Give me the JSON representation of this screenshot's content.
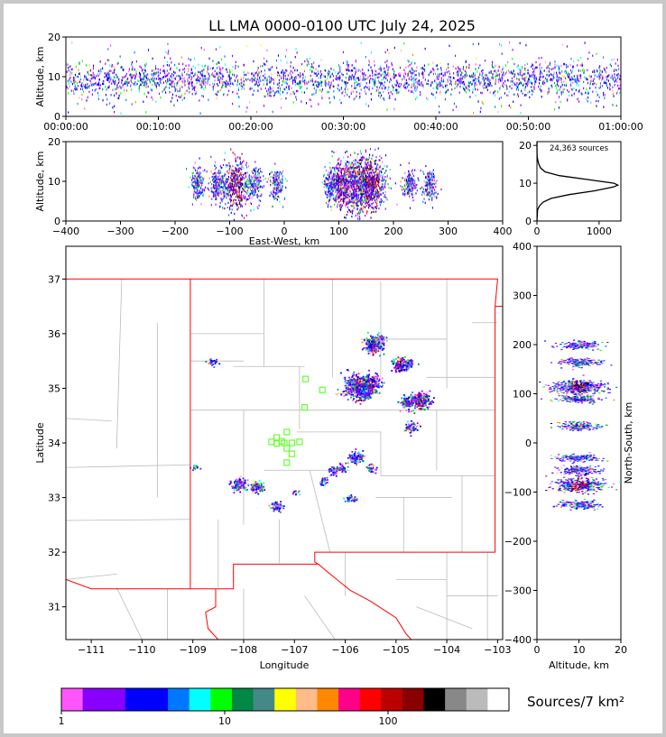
{
  "title": "LL LMA 0000-0100 UTC July 24, 2025",
  "colors": {
    "background": "#c8c8c8",
    "panel": "#ffffff",
    "state_border": "#ff0000",
    "county_border": "#bbbbbb",
    "station_marker": "#66ff33"
  },
  "chart_data": [
    {
      "id": "time-altitude",
      "type": "scatter",
      "xlabel": "",
      "ylabel": "Altitude, km",
      "xlim": [
        "00:00:00",
        "01:00:00"
      ],
      "ylim": [
        0,
        20
      ],
      "x_ticks": [
        "00:00:00",
        "00:10:00",
        "00:20:00",
        "00:30:00",
        "00:40:00",
        "00:50:00",
        "01:00:00"
      ],
      "y_ticks": [
        0,
        10,
        20
      ],
      "distribution": {
        "altitude_center_km": 9.5,
        "altitude_spread_km": 2.2,
        "altitude_range_km": [
          1,
          19
        ]
      }
    },
    {
      "id": "eastwest-altitude",
      "type": "scatter",
      "xlabel": "East-West, km",
      "ylabel": "Altitude, km",
      "xlim": [
        -400,
        400
      ],
      "ylim": [
        0,
        20
      ],
      "x_ticks": [
        -400,
        -300,
        -200,
        -100,
        0,
        100,
        200,
        300,
        400
      ],
      "y_ticks": [
        0,
        10,
        20
      ],
      "clusters_x_km": [
        -160,
        -125,
        -90,
        -55,
        -15,
        85,
        110,
        140,
        160,
        230,
        265
      ]
    },
    {
      "id": "altitude-histogram",
      "type": "line",
      "annotation": "24,363 sources",
      "xlim": [
        0,
        1350
      ],
      "ylim": [
        0,
        21
      ],
      "x_ticks": [
        0,
        1000
      ],
      "y_ticks": [
        0,
        10,
        20
      ],
      "altitude_km": [
        0,
        3,
        4,
        5,
        6,
        7,
        8,
        9,
        9.5,
        10,
        11,
        12,
        13,
        14,
        15,
        16,
        17,
        18,
        21
      ],
      "count": [
        0,
        10,
        40,
        100,
        230,
        520,
        930,
        1230,
        1300,
        1240,
        800,
        360,
        130,
        60,
        30,
        15,
        5,
        2,
        0
      ]
    },
    {
      "id": "plan-view",
      "type": "scatter",
      "xlabel": "Longitude",
      "ylabel": "Latitude",
      "xlim": [
        -111.5,
        -102.9
      ],
      "ylim": [
        30.4,
        37.6
      ],
      "x_ticks": [
        -111,
        -110,
        -109,
        -108,
        -107,
        -106,
        -105,
        -104,
        -103
      ],
      "y_ticks": [
        31,
        32,
        33,
        34,
        35,
        36,
        37
      ],
      "storm_cells": [
        {
          "lon": -105.45,
          "lat": 35.8,
          "n": 70
        },
        {
          "lon": -105.35,
          "lat": 35.9,
          "n": 20
        },
        {
          "lon": -105.75,
          "lat": 35.05,
          "n": 160
        },
        {
          "lon": -105.5,
          "lat": 35.1,
          "n": 60
        },
        {
          "lon": -105.6,
          "lat": 34.9,
          "n": 20
        },
        {
          "lon": -104.95,
          "lat": 35.45,
          "n": 45
        },
        {
          "lon": -104.75,
          "lat": 35.47,
          "n": 20
        },
        {
          "lon": -104.55,
          "lat": 34.78,
          "n": 80
        },
        {
          "lon": -104.8,
          "lat": 34.75,
          "n": 30
        },
        {
          "lon": -104.72,
          "lat": 34.3,
          "n": 20
        },
        {
          "lon": -108.1,
          "lat": 33.25,
          "n": 40
        },
        {
          "lon": -107.75,
          "lat": 33.2,
          "n": 30
        },
        {
          "lon": -107.35,
          "lat": 32.85,
          "n": 20
        },
        {
          "lon": -105.8,
          "lat": 33.75,
          "n": 35
        },
        {
          "lon": -106.25,
          "lat": 33.5,
          "n": 15
        },
        {
          "lon": -106.05,
          "lat": 33.55,
          "n": 10
        },
        {
          "lon": -105.88,
          "lat": 32.98,
          "n": 12
        },
        {
          "lon": -106.45,
          "lat": 33.3,
          "n": 10
        },
        {
          "lon": -105.5,
          "lat": 33.55,
          "n": 10
        },
        {
          "lon": -108.6,
          "lat": 35.47,
          "n": 8
        },
        {
          "lon": -108.95,
          "lat": 33.57,
          "n": 5
        },
        {
          "lon": -107.0,
          "lat": 33.1,
          "n": 4
        }
      ],
      "stations": [
        {
          "lon": -106.78,
          "lat": 35.17
        },
        {
          "lon": -106.45,
          "lat": 34.97
        },
        {
          "lon": -106.8,
          "lat": 34.65
        },
        {
          "lon": -107.15,
          "lat": 34.2
        },
        {
          "lon": -107.35,
          "lat": 34.1
        },
        {
          "lon": -107.45,
          "lat": 34.02
        },
        {
          "lon": -107.35,
          "lat": 33.99
        },
        {
          "lon": -107.2,
          "lat": 34.0
        },
        {
          "lon": -107.05,
          "lat": 34.0
        },
        {
          "lon": -106.9,
          "lat": 34.02
        },
        {
          "lon": -107.15,
          "lat": 33.9
        },
        {
          "lon": -107.05,
          "lat": 33.8
        },
        {
          "lon": -107.15,
          "lat": 33.64
        },
        {
          "lon": -107.25,
          "lat": 34.03
        }
      ]
    },
    {
      "id": "altitude-northsouth",
      "type": "scatter",
      "xlabel": "Altitude, km",
      "ylabel": "North-South, km",
      "xlim": [
        0,
        20
      ],
      "ylim": [
        -400,
        400
      ],
      "x_ticks": [
        0,
        10,
        20
      ],
      "y_ticks": [
        -400,
        -300,
        -200,
        -100,
        0,
        100,
        200,
        300,
        400
      ],
      "clusters_ns_km": [
        200,
        165,
        115,
        90,
        35,
        -30,
        -55,
        -85,
        -125
      ]
    }
  ],
  "colorbar": {
    "label": "Sources/7 km²",
    "tick_labels": [
      "1",
      "10",
      "100"
    ],
    "colors": [
      "#ff55ff",
      "#8800ff",
      "#8800ff",
      "#0000ff",
      "#0000ff",
      "#0077ff",
      "#00ffff",
      "#00ff00",
      "#008844",
      "#448888",
      "#ffff00",
      "#ffbb88",
      "#ff8800",
      "#ff0088",
      "#ff0000",
      "#bb0000",
      "#880000",
      "#000000",
      "#888888",
      "#bbbbbb",
      "#ffffff"
    ]
  }
}
